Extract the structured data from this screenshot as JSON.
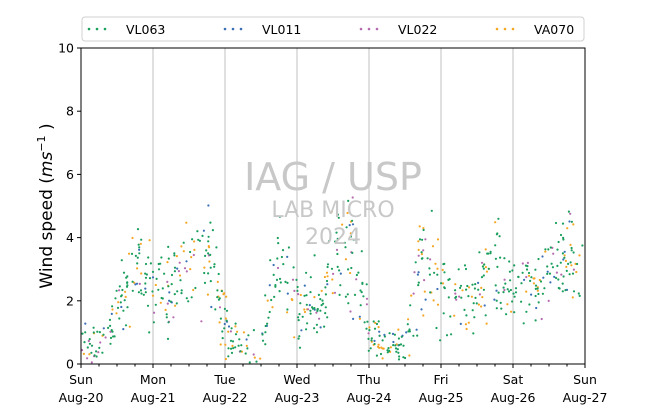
{
  "chart_data": {
    "type": "scatter",
    "ylabel_main": "Wind speed (",
    "ylabel_unit": "ms",
    "ylabel_exp": "−1",
    "ylabel_close": " )",
    "ylim": [
      0,
      10
    ],
    "yticks": [
      "0",
      "2",
      "4",
      "6",
      "8",
      "10"
    ],
    "xlim": [
      "2023-08-20",
      "2023-08-27"
    ],
    "xticks": [
      {
        "day": "Sun",
        "date": "Aug-20"
      },
      {
        "day": "Mon",
        "date": "Aug-21"
      },
      {
        "day": "Tue",
        "date": "Aug-22"
      },
      {
        "day": "Wed",
        "date": "Aug-23"
      },
      {
        "day": "Thu",
        "date": "Aug-24"
      },
      {
        "day": "Fri",
        "date": "Aug-25"
      },
      {
        "day": "Sat",
        "date": "Aug-26"
      },
      {
        "day": "Sun",
        "date": "Aug-27"
      }
    ],
    "grid": "vertical",
    "legend_position": "top",
    "watermark": [
      "IAG / USP",
      "LAB MICRO",
      "2024"
    ],
    "series": [
      {
        "name": "VL063",
        "color": "#1a9e5c"
      },
      {
        "name": "VL011",
        "color": "#3b6fb6"
      },
      {
        "name": "VL022",
        "color": "#b56ab0"
      },
      {
        "name": "VA070",
        "color": "#f5a623"
      }
    ],
    "envelope": {
      "x_days": [
        0,
        0.25,
        0.5,
        0.75,
        1.0,
        1.25,
        1.5,
        1.75,
        2.0,
        2.25,
        2.5,
        2.75,
        3.0,
        3.25,
        3.5,
        3.75,
        4.0,
        4.25,
        4.5,
        4.75,
        5.0,
        5.25,
        5.5,
        5.75,
        6.0,
        6.25,
        6.5,
        6.75,
        7.0
      ],
      "mean": [
        0.8,
        0.5,
        1.7,
        3.0,
        2.4,
        2.3,
        3.0,
        3.4,
        1.2,
        0.5,
        0.5,
        3.6,
        1.6,
        1.9,
        3.0,
        4.2,
        1.0,
        0.5,
        0.5,
        3.8,
        2.1,
        2.1,
        2.2,
        3.0,
        2.3,
        2.6,
        2.9,
        3.4,
        2.6
      ],
      "spread": [
        0.35,
        0.3,
        0.5,
        0.7,
        0.7,
        0.7,
        0.8,
        0.8,
        0.5,
        0.3,
        0.3,
        0.9,
        0.5,
        0.6,
        0.8,
        1.0,
        0.4,
        0.25,
        0.3,
        1.2,
        0.6,
        0.5,
        0.5,
        0.8,
        0.5,
        0.6,
        0.6,
        0.8,
        0.7
      ]
    }
  }
}
